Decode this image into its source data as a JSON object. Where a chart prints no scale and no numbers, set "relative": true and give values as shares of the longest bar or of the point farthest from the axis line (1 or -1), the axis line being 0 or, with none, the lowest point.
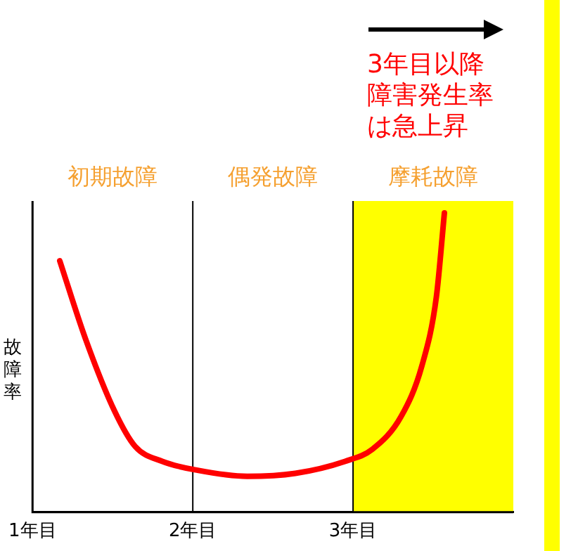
{
  "chart_data": {
    "type": "line",
    "relative": true,
    "ylabel": "故障率",
    "x": [
      1.17,
      1.33,
      1.51,
      1.64,
      1.81,
      2.03,
      2.34,
      2.64,
      2.95,
      3.12,
      3.3,
      3.43,
      3.52,
      3.57
    ],
    "series": [
      {
        "color": "#ff0000",
        "values": [
          0.84,
          0.58,
          0.34,
          0.22,
          0.17,
          0.14,
          0.12,
          0.13,
          0.17,
          0.21,
          0.32,
          0.49,
          0.72,
          1
        ]
      }
    ],
    "xlim": [
      1,
      4
    ],
    "xticks": [
      {
        "value": 1,
        "label": "1年目"
      },
      {
        "value": 2,
        "label": "2年目"
      },
      {
        "value": 3,
        "label": "3年目"
      }
    ],
    "legend": false,
    "marker": "none",
    "line_style": "solid",
    "ref_lines": [
      {
        "axis": "x",
        "value": 2,
        "color": "#000000"
      },
      {
        "axis": "x",
        "value": 3,
        "color": "#000000"
      }
    ],
    "bands": [
      {
        "axis": "x",
        "from": 3,
        "to": 4,
        "label": "摩耗故障",
        "color": "#ffff00"
      }
    ],
    "annotations": [
      "初期故障",
      "偶発故障",
      "3年目以降障害発生率は急上昇"
    ]
  }
}
